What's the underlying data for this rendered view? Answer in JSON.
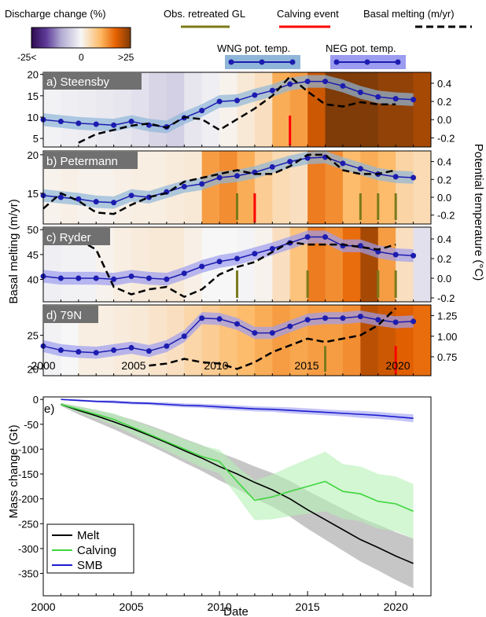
{
  "legend": {
    "colorbar_title": "Discharge change (%)",
    "colorbar_ticks": [
      "-25<",
      "0",
      ">25"
    ],
    "obs_gl": "Obs. retreated GL",
    "calving": "Calving event",
    "basal": "Basal melting (m/yr)",
    "wng": "WNG pot. temp.",
    "neg": "NEG pot. temp."
  },
  "colors": {
    "obs_gl": "#7a7a1a",
    "calving": "#ff0000",
    "temp_line": "#1c1cb0",
    "wng_band": "#8fb6d8",
    "neg_band": "#9c9cf0",
    "melt": "#000000",
    "calving_series": "#3ed63e",
    "smb": "#1c1cd0",
    "label_box": "#707070"
  },
  "ylabel_left": "Basal melting (m/yr)",
  "ylabel_right": "Potential temperature (°C)",
  "chart_data": [
    {
      "type": "line",
      "panel": "a) Steensby",
      "xlim": [
        2000,
        2022
      ],
      "ylim_left": [
        3,
        20.5
      ],
      "yticks_left": [
        5,
        10,
        15,
        20
      ],
      "ylim_right": [
        -0.3,
        0.52
      ],
      "yticks_right": [
        "-0.2",
        "0.0",
        "0.2",
        "0.4"
      ],
      "yticks_right_values": [
        -0.2,
        0,
        0.2,
        0.4
      ],
      "discharge_change": [
        -2,
        -3,
        -4,
        -5,
        -6,
        -8,
        -12,
        -14,
        -6,
        -3,
        2,
        6,
        10,
        30,
        35,
        60,
        80,
        80,
        80,
        75,
        75,
        70
      ],
      "temp_series": {
        "name": "WNG pot. temp.",
        "band": "wng",
        "x": [
          2000,
          2001,
          2002,
          2003,
          2004,
          2005,
          2006,
          2007,
          2008,
          2009,
          2010,
          2011,
          2012,
          2013,
          2014,
          2015,
          2016,
          2017,
          2018,
          2019,
          2020,
          2021
        ],
        "y": [
          0.0,
          -0.02,
          -0.04,
          -0.05,
          -0.06,
          -0.02,
          -0.06,
          -0.08,
          0.02,
          0.1,
          0.2,
          0.21,
          0.27,
          0.32,
          0.39,
          0.42,
          0.42,
          0.37,
          0.3,
          0.25,
          0.23,
          0.22
        ]
      },
      "basal_melting": {
        "x": [
          2002,
          2003,
          2004,
          2005,
          2006,
          2007,
          2008,
          2009,
          2010,
          2011,
          2012,
          2013,
          2014,
          2015,
          2016,
          2017,
          2018,
          2019,
          2020
        ],
        "y": [
          4,
          6,
          7,
          8,
          8.5,
          7.5,
          10,
          9.5,
          7,
          9.5,
          12,
          15,
          19.5,
          16,
          13,
          12.5,
          13.5,
          13,
          13
        ]
      },
      "gl_events": [],
      "calving_events": [
        2014
      ]
    },
    {
      "type": "line",
      "panel": "b) Petermann",
      "xlim": [
        2000,
        2022
      ],
      "ylim_left": [
        11,
        20.5
      ],
      "yticks_left": [
        15,
        20
      ],
      "ylim_right": [
        -0.3,
        0.52
      ],
      "yticks_right": [
        "-0.2",
        "0.0",
        "0.2",
        "0.4"
      ],
      "yticks_right_values": [
        -0.2,
        0,
        0.2,
        0.4
      ],
      "discharge_change": [
        2,
        3,
        2,
        2,
        3,
        4,
        4,
        5,
        6,
        35,
        40,
        30,
        18,
        12,
        10,
        45,
        40,
        25,
        30,
        25,
        15,
        12
      ],
      "temp_series": {
        "name": "WNG pot. temp.",
        "band": "wng",
        "x": [
          2000,
          2001,
          2002,
          2003,
          2004,
          2005,
          2006,
          2007,
          2008,
          2009,
          2010,
          2011,
          2012,
          2013,
          2014,
          2015,
          2016,
          2017,
          2018,
          2019,
          2020,
          2021
        ],
        "y": [
          0.02,
          0.0,
          -0.02,
          -0.05,
          -0.06,
          0.02,
          0.0,
          0.06,
          0.12,
          0.15,
          0.22,
          0.24,
          0.28,
          0.34,
          0.4,
          0.44,
          0.45,
          0.38,
          0.32,
          0.26,
          0.23,
          0.22
        ]
      },
      "basal_melting": {
        "x": [
          2000,
          2001,
          2002,
          2003,
          2004,
          2005,
          2006,
          2007,
          2008,
          2009,
          2010,
          2011,
          2012,
          2013,
          2014,
          2015,
          2016,
          2017,
          2018,
          2019,
          2020
        ],
        "y": [
          13,
          15,
          14,
          12.5,
          12.3,
          13.5,
          14.5,
          15,
          16.5,
          17,
          17.5,
          18,
          17.5,
          17.5,
          18.5,
          20,
          20,
          18,
          17.5,
          17.5,
          18
        ]
      },
      "gl_events": [
        2011,
        2018,
        2019,
        2020
      ],
      "calving_events": [
        2012
      ]
    },
    {
      "type": "line",
      "panel": "c) Ryder",
      "xlim": [
        2000,
        2022
      ],
      "ylim_left": [
        35.5,
        50.5
      ],
      "yticks_left": [
        40,
        45,
        50
      ],
      "ylim_right": [
        -0.24,
        0.52
      ],
      "yticks_right": [
        "-0.2",
        "0.0",
        "0.2",
        "0.4"
      ],
      "yticks_right_values": [
        -0.2,
        0,
        0.2,
        0.4
      ],
      "discharge_change": [
        -3,
        -2,
        -2,
        2,
        4,
        5,
        6,
        6,
        3,
        0,
        0,
        -1,
        2,
        10,
        22,
        45,
        40,
        50,
        70,
        35,
        10,
        -8
      ],
      "temp_series": {
        "name": "NEG pot. temp.",
        "band": "neg",
        "x": [
          2000,
          2001,
          2002,
          2003,
          2004,
          2005,
          2006,
          2007,
          2008,
          2009,
          2010,
          2011,
          2012,
          2013,
          2014,
          2015,
          2016,
          2017,
          2018,
          2019,
          2020,
          2021
        ],
        "y": [
          0.02,
          0.0,
          0.0,
          0.0,
          -0.01,
          0.02,
          0.0,
          -0.01,
          0.05,
          0.12,
          0.17,
          0.2,
          0.25,
          0.3,
          0.36,
          0.42,
          0.42,
          0.33,
          0.33,
          0.27,
          0.24,
          0.23
        ]
      },
      "basal_melting": {
        "x": [
          2002,
          2003,
          2004,
          2005,
          2006,
          2007,
          2008,
          2009,
          2010,
          2011,
          2012,
          2013,
          2014,
          2015,
          2016,
          2017,
          2018,
          2019,
          2020
        ],
        "y": [
          48,
          46,
          38.5,
          37,
          38,
          38.5,
          36.5,
          38,
          41,
          42.5,
          43.5,
          45.5,
          47.5,
          47,
          47,
          47,
          46.5,
          46,
          47
        ]
      },
      "gl_events": [
        2011,
        2015,
        2019,
        2020
      ],
      "calving_events": []
    },
    {
      "type": "line",
      "panel": "d) 79N",
      "xlim": [
        2000,
        2022
      ],
      "ylim_left": [
        19,
        29.5
      ],
      "yticks_left": [
        20,
        25
      ],
      "ylim_right": [
        0.52,
        1.38
      ],
      "yticks_right": [
        "0.75",
        "1.00",
        "1.25"
      ],
      "yticks_right_values": [
        0.75,
        1.0,
        1.25
      ],
      "discharge_change": [
        -2,
        0,
        4,
        4,
        5,
        6,
        8,
        10,
        14,
        18,
        22,
        25,
        30,
        35,
        32,
        35,
        35,
        40,
        65,
        60,
        55,
        50
      ],
      "temp_series": {
        "name": "NEG pot. temp.",
        "band": "neg",
        "x": [
          2000,
          2001,
          2002,
          2003,
          2004,
          2005,
          2006,
          2007,
          2008,
          2009,
          2010,
          2011,
          2012,
          2013,
          2014,
          2015,
          2016,
          2017,
          2018,
          2019,
          2020,
          2021
        ],
        "y": [
          0.88,
          0.83,
          0.81,
          0.8,
          0.83,
          0.86,
          0.82,
          0.88,
          1.0,
          1.22,
          1.21,
          1.15,
          1.04,
          1.04,
          1.12,
          1.2,
          1.22,
          1.22,
          1.24,
          1.2,
          1.17,
          1.18
        ]
      },
      "basal_melting": {
        "x": [
          2006,
          2007,
          2008,
          2009,
          2010,
          2011,
          2012,
          2013,
          2014,
          2015,
          2016,
          2017,
          2018,
          2019,
          2020
        ],
        "y": [
          20.5,
          20.8,
          21.5,
          21,
          20.8,
          20,
          21,
          22.5,
          23.5,
          24.5,
          24,
          24.5,
          25,
          26.5,
          29
        ]
      },
      "gl_events": [
        2016
      ],
      "calving_events": [
        2020
      ]
    },
    {
      "type": "line",
      "panel": "e)",
      "xlabel": "Date",
      "ylabel": "Mass change (Gt)",
      "xlim": [
        2000,
        2022
      ],
      "xticks": [
        2000,
        2005,
        2010,
        2015,
        2020
      ],
      "ylim": [
        -395,
        5
      ],
      "yticks": [
        0,
        -50,
        -100,
        -150,
        -200,
        -250,
        -300,
        -350
      ],
      "x": [
        2001,
        2002,
        2003,
        2004,
        2005,
        2006,
        2007,
        2008,
        2009,
        2010,
        2011,
        2012,
        2013,
        2014,
        2015,
        2016,
        2017,
        2018,
        2019,
        2020,
        2021
      ],
      "series": [
        {
          "name": "Melt",
          "values": [
            -10,
            -22,
            -33,
            -45,
            -58,
            -72,
            -87,
            -103,
            -118,
            -135,
            -150,
            -167,
            -182,
            -200,
            -222,
            -242,
            -262,
            -282,
            -298,
            -315,
            -330
          ],
          "band_halfwidth": [
            3,
            8,
            12,
            15,
            18,
            20,
            22,
            24,
            26,
            28,
            30,
            32,
            34,
            36,
            38,
            40,
            42,
            44,
            46,
            48,
            50
          ]
        },
        {
          "name": "Calving",
          "values": [
            -10,
            -20,
            -30,
            -40,
            -55,
            -70,
            -85,
            -100,
            -115,
            -125,
            -165,
            -203,
            -196,
            -185,
            -175,
            -165,
            -185,
            -190,
            -205,
            -210,
            -225
          ],
          "band_halfwidth": [
            3,
            6,
            9,
            12,
            14,
            16,
            18,
            20,
            22,
            24,
            30,
            40,
            45,
            50,
            55,
            60,
            55,
            55,
            55,
            55,
            55
          ]
        },
        {
          "name": "SMB",
          "values": [
            0,
            -2,
            -4,
            -5,
            -7,
            -8,
            -10,
            -12,
            -13,
            -15,
            -17,
            -19,
            -20,
            -22,
            -24,
            -26,
            -28,
            -30,
            -32,
            -35,
            -38
          ],
          "band_halfwidth": [
            1,
            2,
            2,
            3,
            3,
            3,
            4,
            4,
            4,
            5,
            5,
            5,
            5,
            6,
            6,
            6,
            6,
            7,
            7,
            7,
            8
          ]
        }
      ]
    }
  ]
}
